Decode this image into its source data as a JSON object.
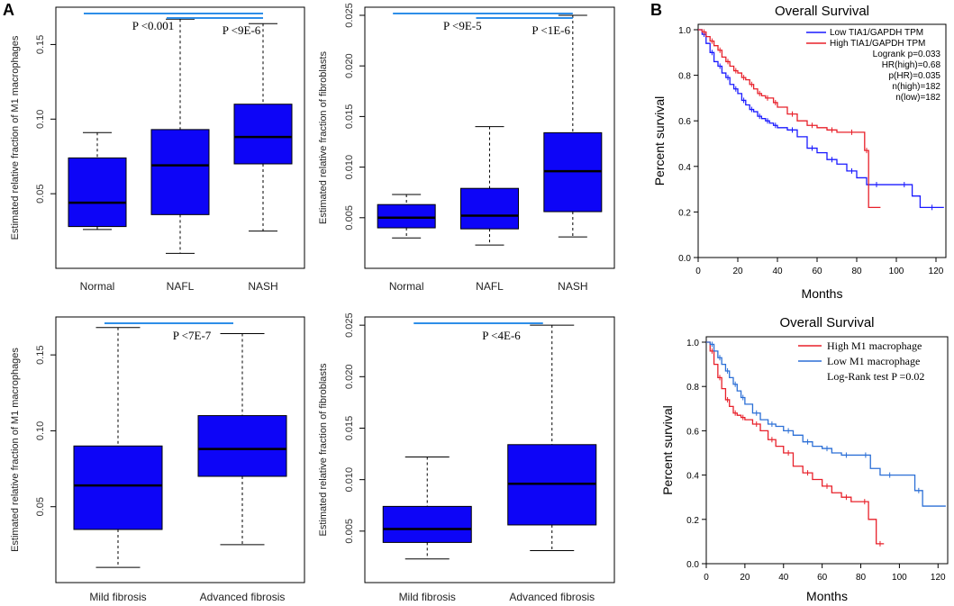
{
  "panel_labels": [
    "A",
    "B"
  ],
  "chart_data": [
    {
      "type": "box",
      "id": "m1_stage",
      "ylabel": "Estimated relative fraction of M1 macrophages",
      "ylim": [
        0.0,
        0.175
      ],
      "yticks": [
        "0.05",
        "0.10",
        "0.15"
      ],
      "ytick_values": [
        0.05,
        0.1,
        0.15
      ],
      "categories": [
        "Normal",
        "NAFL",
        "NASH"
      ],
      "boxes": [
        {
          "min": 0.026,
          "q1": 0.028,
          "median": 0.044,
          "q3": 0.074,
          "max": 0.091
        },
        {
          "min": 0.01,
          "q1": 0.036,
          "median": 0.069,
          "q3": 0.093,
          "max": 0.167
        },
        {
          "min": 0.025,
          "q1": 0.07,
          "median": 0.088,
          "q3": 0.11,
          "max": 0.164
        }
      ],
      "annotations": [
        {
          "text": "P <0.001",
          "from": 0,
          "to": 2,
          "level": 0
        },
        {
          "text": "P <9E-6",
          "from": 1,
          "to": 2,
          "level": 1
        }
      ]
    },
    {
      "type": "box",
      "id": "fibro_stage",
      "ylabel": "Estimated relative fraction of fibroblasts",
      "ylim": [
        0.0,
        0.0258
      ],
      "yticks": [
        "0.005",
        "0.010",
        "0.015",
        "0.020",
        "0.025"
      ],
      "ytick_values": [
        0.005,
        0.01,
        0.015,
        0.02,
        0.025
      ],
      "categories": [
        "Normal",
        "NAFL",
        "NASH"
      ],
      "boxes": [
        {
          "min": 0.003,
          "q1": 0.004,
          "median": 0.005,
          "q3": 0.0063,
          "max": 0.0073
        },
        {
          "min": 0.0023,
          "q1": 0.0039,
          "median": 0.0052,
          "q3": 0.0079,
          "max": 0.014
        },
        {
          "min": 0.0031,
          "q1": 0.0056,
          "median": 0.0096,
          "q3": 0.0134,
          "max": 0.025
        }
      ],
      "annotations": [
        {
          "text": "P <9E-5",
          "from": 0,
          "to": 2,
          "level": 0
        },
        {
          "text": "P <1E-6",
          "from": 1,
          "to": 2,
          "level": 1
        }
      ]
    },
    {
      "type": "box",
      "id": "m1_fibrosis",
      "ylabel": "Estimated relative fraction of M1 macrophages",
      "ylim": [
        0.0,
        0.175
      ],
      "yticks": [
        "0.05",
        "0.10",
        "0.15"
      ],
      "ytick_values": [
        0.05,
        0.1,
        0.15
      ],
      "categories": [
        "Mild fibrosis",
        "Advanced fibrosis"
      ],
      "boxes": [
        {
          "min": 0.01,
          "q1": 0.035,
          "median": 0.064,
          "q3": 0.09,
          "max": 0.168
        },
        {
          "min": 0.025,
          "q1": 0.07,
          "median": 0.088,
          "q3": 0.11,
          "max": 0.164
        }
      ],
      "annotations": [
        {
          "text": "P <7E-7",
          "from": 0,
          "to": 1,
          "level": 0
        }
      ]
    },
    {
      "type": "box",
      "id": "fibro_fibrosis",
      "ylabel": "Estimated relative fraction of fibroblasts",
      "ylim": [
        0.0,
        0.0258
      ],
      "yticks": [
        "0.005",
        "0.010",
        "0.015",
        "0.020",
        "0.025"
      ],
      "ytick_values": [
        0.005,
        0.01,
        0.015,
        0.02,
        0.025
      ],
      "categories": [
        "Mild fibrosis",
        "Advanced fibrosis"
      ],
      "boxes": [
        {
          "min": 0.0023,
          "q1": 0.0039,
          "median": 0.0052,
          "q3": 0.0074,
          "max": 0.0122
        },
        {
          "min": 0.0031,
          "q1": 0.0056,
          "median": 0.0096,
          "q3": 0.0134,
          "max": 0.025
        }
      ],
      "annotations": [
        {
          "text": "P <4E-6",
          "from": 0,
          "to": 1,
          "level": 0
        }
      ]
    },
    {
      "type": "line",
      "id": "km_tia1",
      "title": "Overall Survival",
      "xlabel": "Months",
      "ylabel": "Percent survival",
      "xlim": [
        0,
        125
      ],
      "ylim": [
        0,
        1.0
      ],
      "xticks": [
        "0",
        "20",
        "40",
        "60",
        "80",
        "100",
        "120"
      ],
      "xtick_values": [
        0,
        20,
        40,
        60,
        80,
        100,
        120
      ],
      "yticks": [
        "0.0",
        "0.2",
        "0.4",
        "0.6",
        "0.8",
        "1.0"
      ],
      "ytick_values": [
        0,
        0.2,
        0.4,
        0.6,
        0.8,
        1.0
      ],
      "series": [
        {
          "name": "Low TIA1/GAPDH TPM",
          "color": "#1a1aff",
          "x": [
            0,
            2,
            4,
            6,
            8,
            10,
            12,
            14,
            16,
            18,
            20,
            22,
            24,
            26,
            28,
            30,
            32,
            34,
            36,
            38,
            40,
            45,
            50,
            55,
            60,
            65,
            70,
            75,
            80,
            85,
            95,
            100,
            108,
            112,
            124
          ],
          "y": [
            1.0,
            0.98,
            0.94,
            0.9,
            0.86,
            0.84,
            0.81,
            0.79,
            0.76,
            0.74,
            0.72,
            0.69,
            0.67,
            0.65,
            0.64,
            0.62,
            0.61,
            0.6,
            0.59,
            0.58,
            0.57,
            0.56,
            0.53,
            0.48,
            0.46,
            0.43,
            0.41,
            0.38,
            0.35,
            0.32,
            0.32,
            0.32,
            0.27,
            0.22,
            0.22
          ]
        },
        {
          "name": "High TIA1/GAPDH TPM",
          "color": "#e8202a",
          "x": [
            0,
            2,
            4,
            6,
            8,
            10,
            12,
            14,
            16,
            18,
            20,
            22,
            24,
            26,
            28,
            30,
            32,
            34,
            36,
            38,
            40,
            45,
            50,
            55,
            60,
            65,
            70,
            75,
            80,
            84,
            86,
            92
          ],
          "y": [
            1.0,
            0.99,
            0.97,
            0.95,
            0.93,
            0.91,
            0.88,
            0.86,
            0.84,
            0.82,
            0.81,
            0.79,
            0.78,
            0.76,
            0.74,
            0.72,
            0.71,
            0.7,
            0.7,
            0.68,
            0.66,
            0.63,
            0.6,
            0.58,
            0.57,
            0.56,
            0.55,
            0.55,
            0.55,
            0.47,
            0.22,
            0.22
          ]
        }
      ],
      "legend_extra": [
        "Logrank p=0.033",
        "HR(high)=0.68",
        "p(HR)=0.035",
        "n(high)=182",
        "n(low)=182"
      ]
    },
    {
      "type": "line",
      "id": "km_m1",
      "title": "Overall Survival",
      "xlabel": "Months",
      "ylabel": "Percent survival",
      "xlim": [
        0,
        125
      ],
      "ylim": [
        0,
        1.0
      ],
      "xticks": [
        "0",
        "20",
        "40",
        "60",
        "80",
        "100",
        "120"
      ],
      "xtick_values": [
        0,
        20,
        40,
        60,
        80,
        100,
        120
      ],
      "yticks": [
        "0.0",
        "0.2",
        "0.4",
        "0.6",
        "0.8",
        "1.0"
      ],
      "ytick_values": [
        0,
        0.2,
        0.4,
        0.6,
        0.8,
        1.0
      ],
      "series": [
        {
          "name": "High M1 macrophage",
          "color": "#e8202a",
          "x": [
            0,
            2,
            4,
            6,
            8,
            10,
            12,
            14,
            16,
            18,
            20,
            24,
            28,
            32,
            36,
            40,
            45,
            50,
            55,
            60,
            65,
            70,
            75,
            80,
            84,
            88,
            92
          ],
          "y": [
            1.0,
            0.96,
            0.9,
            0.84,
            0.79,
            0.74,
            0.71,
            0.68,
            0.67,
            0.66,
            0.65,
            0.63,
            0.6,
            0.56,
            0.53,
            0.5,
            0.44,
            0.41,
            0.38,
            0.35,
            0.32,
            0.3,
            0.28,
            0.28,
            0.2,
            0.09,
            0.09
          ]
        },
        {
          "name": "Low M1 macrophage",
          "color": "#2b6fd6",
          "x": [
            0,
            2,
            4,
            6,
            8,
            10,
            12,
            14,
            16,
            18,
            20,
            24,
            28,
            32,
            36,
            40,
            45,
            50,
            55,
            60,
            65,
            70,
            75,
            80,
            85,
            90,
            100,
            108,
            112,
            124
          ],
          "y": [
            1.0,
            0.99,
            0.96,
            0.93,
            0.9,
            0.87,
            0.84,
            0.81,
            0.78,
            0.75,
            0.72,
            0.68,
            0.65,
            0.63,
            0.62,
            0.6,
            0.58,
            0.55,
            0.53,
            0.52,
            0.5,
            0.49,
            0.49,
            0.49,
            0.43,
            0.4,
            0.4,
            0.33,
            0.26,
            0.26
          ]
        }
      ],
      "legend_extra": [
        "Log-Rank test P =0.02"
      ]
    }
  ]
}
